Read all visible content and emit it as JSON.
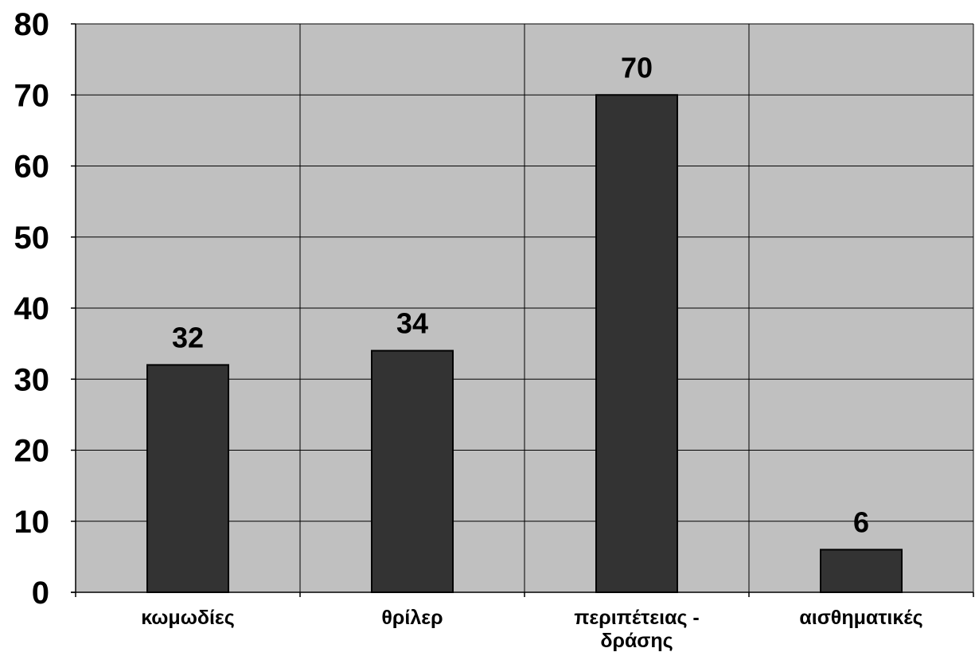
{
  "chart_data": {
    "type": "bar",
    "title": "",
    "xlabel": "",
    "ylabel": "",
    "categories": [
      "κωμωδίες",
      "θρίλερ",
      "περιπέτειας - δράσης",
      "αισθηματικές"
    ],
    "category_lines": [
      [
        "κωμωδίες"
      ],
      [
        "θρίλερ"
      ],
      [
        "περιπέτειας -",
        "δράσης"
      ],
      [
        "αισθηματικές"
      ]
    ],
    "values": [
      32,
      34,
      70,
      6
    ],
    "data_labels": [
      "32",
      "34",
      "70",
      "6"
    ],
    "ylim": [
      0,
      80
    ],
    "yticks": [
      0,
      10,
      20,
      30,
      40,
      50,
      60,
      70,
      80
    ],
    "ytick_labels": [
      "0",
      "10",
      "20",
      "30",
      "40",
      "50",
      "60",
      "70",
      "80"
    ],
    "grid": true,
    "legend": "none",
    "colors": {
      "plot_background": "#c0c0c0",
      "bar_fill": "#333333",
      "bar_stroke": "#000000",
      "grid": "#000000"
    }
  }
}
